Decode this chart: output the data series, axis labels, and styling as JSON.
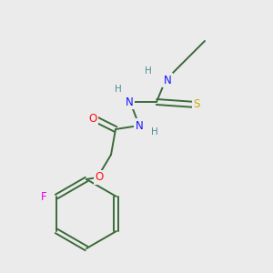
{
  "background_color": "#ebebeb",
  "bond_color": "#3a6b3a",
  "atom_colors": {
    "N": "#1414ff",
    "O": "#ff1010",
    "S": "#ccaa00",
    "F": "#ee00ee",
    "H": "#4a9090",
    "C": "#3a6b3a"
  },
  "figsize": [
    3.0,
    3.0
  ],
  "dpi": 100,
  "bond_lw": 1.4,
  "font_size": 8.5
}
